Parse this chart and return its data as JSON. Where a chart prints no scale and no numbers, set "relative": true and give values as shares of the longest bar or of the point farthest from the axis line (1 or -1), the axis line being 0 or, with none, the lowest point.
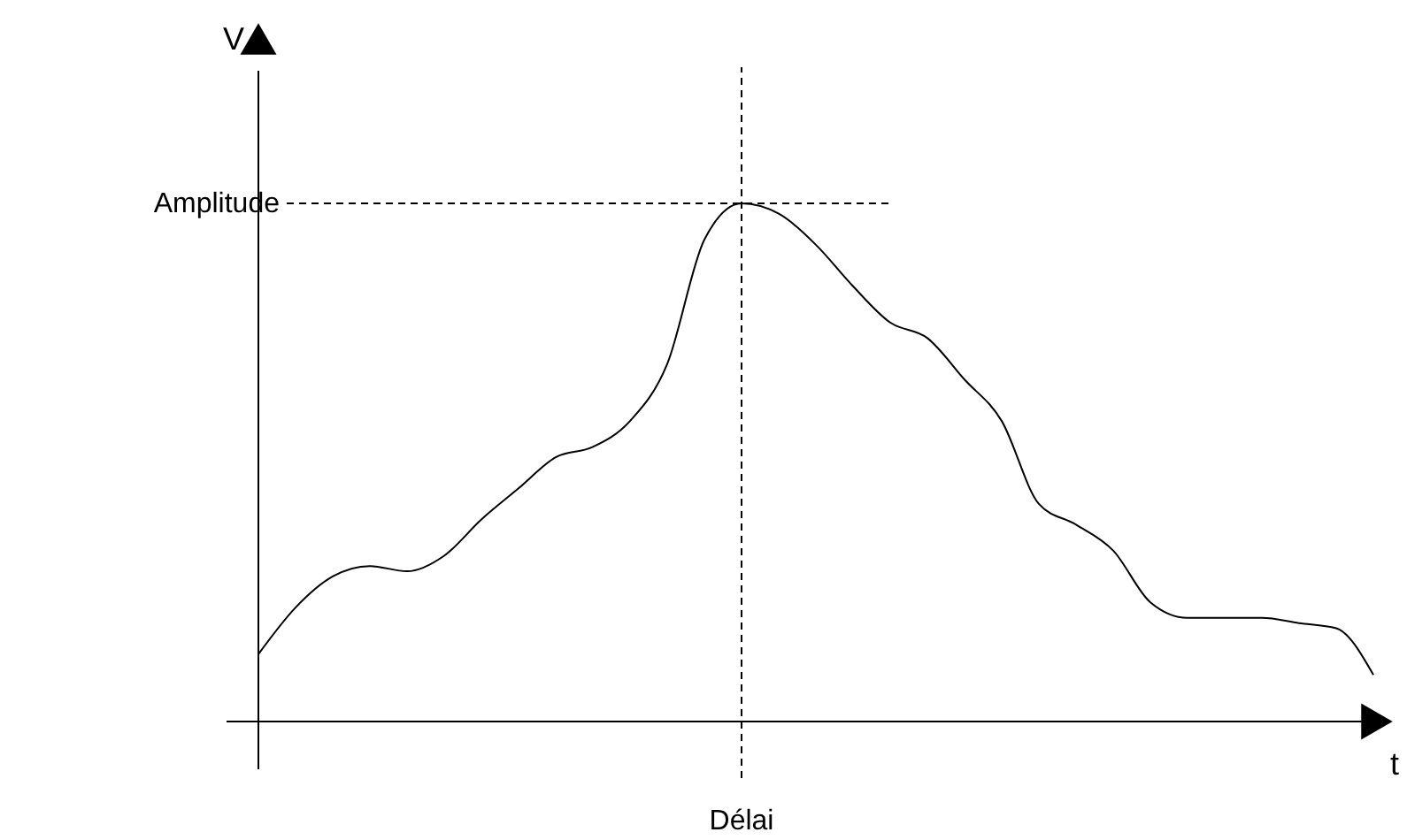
{
  "chart_data": {
    "type": "line",
    "relative": true,
    "xlabel": "t",
    "ylabel": "V",
    "color": "#000000",
    "line_style": "solid",
    "marker": "none",
    "annotations": [
      "Délai"
    ],
    "categories": [
      null,
      null,
      null,
      null,
      null,
      null,
      null,
      null,
      null,
      null,
      null,
      null,
      null,
      null,
      null,
      null,
      null,
      null,
      null,
      null,
      null,
      null,
      null,
      null,
      null,
      null,
      null,
      null,
      null,
      null,
      null
    ],
    "values": [
      0.13,
      0.22,
      0.28,
      0.3,
      0.29,
      0.32,
      0.39,
      0.45,
      0.51,
      0.53,
      0.58,
      0.69,
      0.93,
      1,
      0.98,
      0.92,
      0.84,
      0.77,
      0.74,
      0.66,
      0.58,
      0.42,
      0.38,
      0.33,
      0.23,
      0.2,
      0.2,
      0.2,
      0.19,
      0.18,
      0.09
    ],
    "ref_lines": [
      {
        "axis": "y",
        "value": 1,
        "label": "Amplitude",
        "line_style": "dashed",
        "color": "#000000"
      }
    ]
  }
}
